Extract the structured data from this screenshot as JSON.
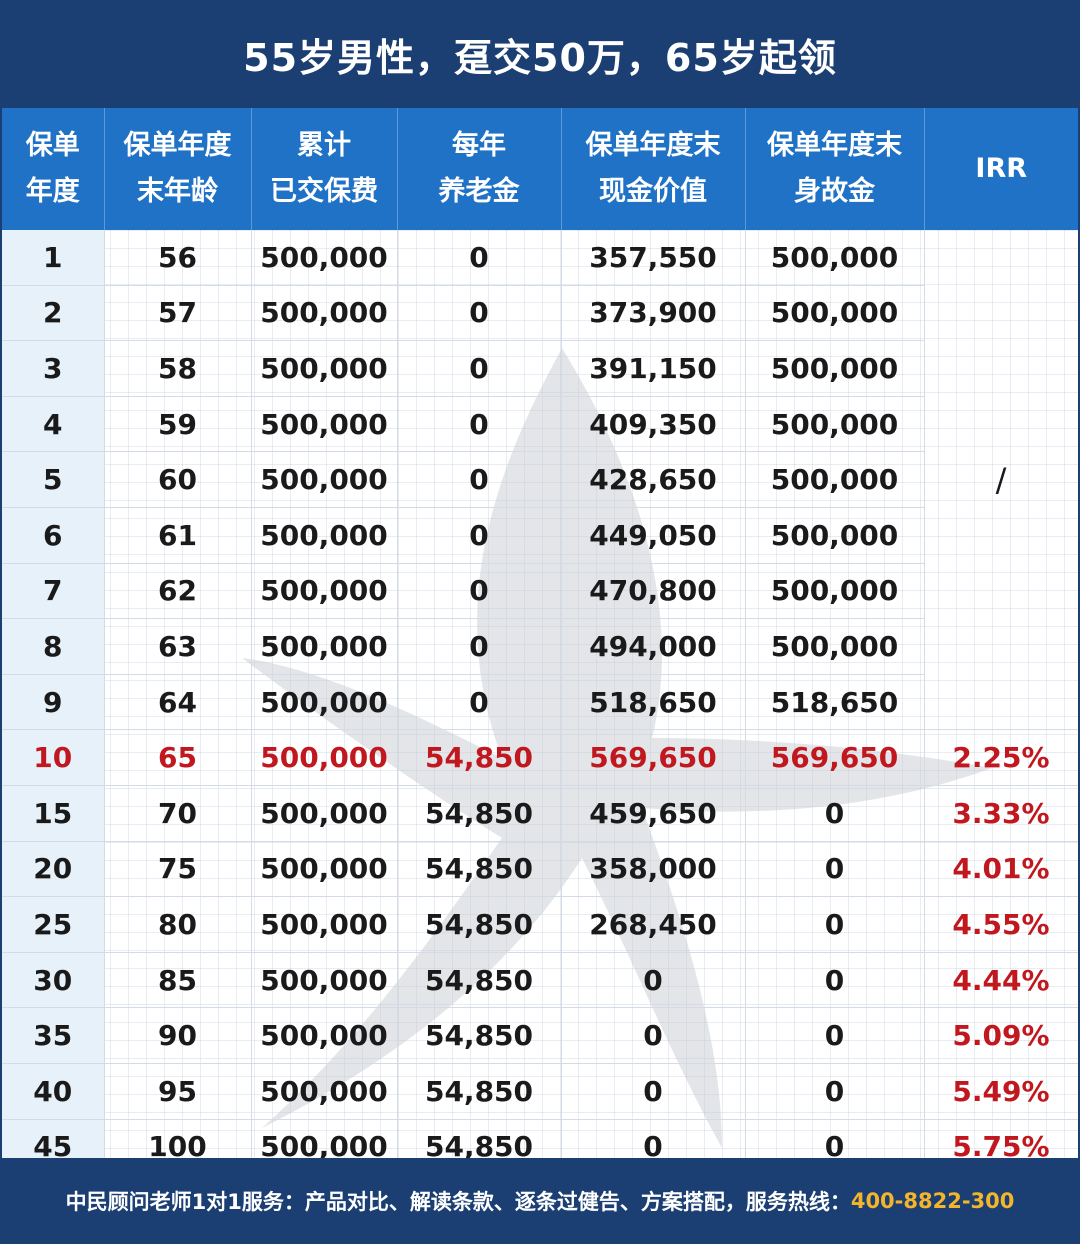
{
  "title": "55岁男性，趸交50万，65岁起领",
  "headers": [
    [
      "保单",
      "年度"
    ],
    [
      "保单年度",
      "末年龄"
    ],
    [
      "累计",
      "已交保费"
    ],
    [
      "每年",
      "养老金"
    ],
    [
      "保单年度末",
      "现金价值"
    ],
    [
      "保单年度末",
      "身故金"
    ],
    [
      "IRR"
    ]
  ],
  "irr_merged": "/",
  "rows": [
    [
      "1",
      "56",
      "500,000",
      "0",
      "357,550",
      "500,000"
    ],
    [
      "2",
      "57",
      "500,000",
      "0",
      "373,900",
      "500,000"
    ],
    [
      "3",
      "58",
      "500,000",
      "0",
      "391,150",
      "500,000"
    ],
    [
      "4",
      "59",
      "500,000",
      "0",
      "409,350",
      "500,000"
    ],
    [
      "5",
      "60",
      "500,000",
      "0",
      "428,650",
      "500,000"
    ],
    [
      "6",
      "61",
      "500,000",
      "0",
      "449,050",
      "500,000"
    ],
    [
      "7",
      "62",
      "500,000",
      "0",
      "470,800",
      "500,000"
    ],
    [
      "8",
      "63",
      "500,000",
      "0",
      "494,000",
      "500,000"
    ],
    [
      "9",
      "64",
      "500,000",
      "0",
      "518,650",
      "518,650"
    ],
    [
      "10",
      "65",
      "500,000",
      "54,850",
      "569,650",
      "569,650",
      "2.25%"
    ],
    [
      "15",
      "70",
      "500,000",
      "54,850",
      "459,650",
      "0",
      "3.33%"
    ],
    [
      "20",
      "75",
      "500,000",
      "54,850",
      "358,000",
      "0",
      "4.01%"
    ],
    [
      "25",
      "80",
      "500,000",
      "54,850",
      "268,450",
      "0",
      "4.55%"
    ],
    [
      "30",
      "85",
      "500,000",
      "54,850",
      "0",
      "0",
      "4.44%"
    ],
    [
      "35",
      "90",
      "500,000",
      "54,850",
      "0",
      "0",
      "5.09%"
    ],
    [
      "40",
      "95",
      "500,000",
      "54,850",
      "0",
      "0",
      "5.49%"
    ],
    [
      "45",
      "100",
      "500,000",
      "54,850",
      "0",
      "0",
      "5.75%"
    ]
  ],
  "highlight_row_index": 9,
  "footer": {
    "text": "中民顾问老师1对1服务：产品对比、解读条款、逐条过健告、方案搭配，服务热线：",
    "hotline": "400-8822-300"
  },
  "colors": {
    "frame": "#1b3f73",
    "header": "#1f72c6",
    "first_column": "#e6f1fa",
    "highlight_text": "#c0181e",
    "hotline": "#f5b52a"
  }
}
